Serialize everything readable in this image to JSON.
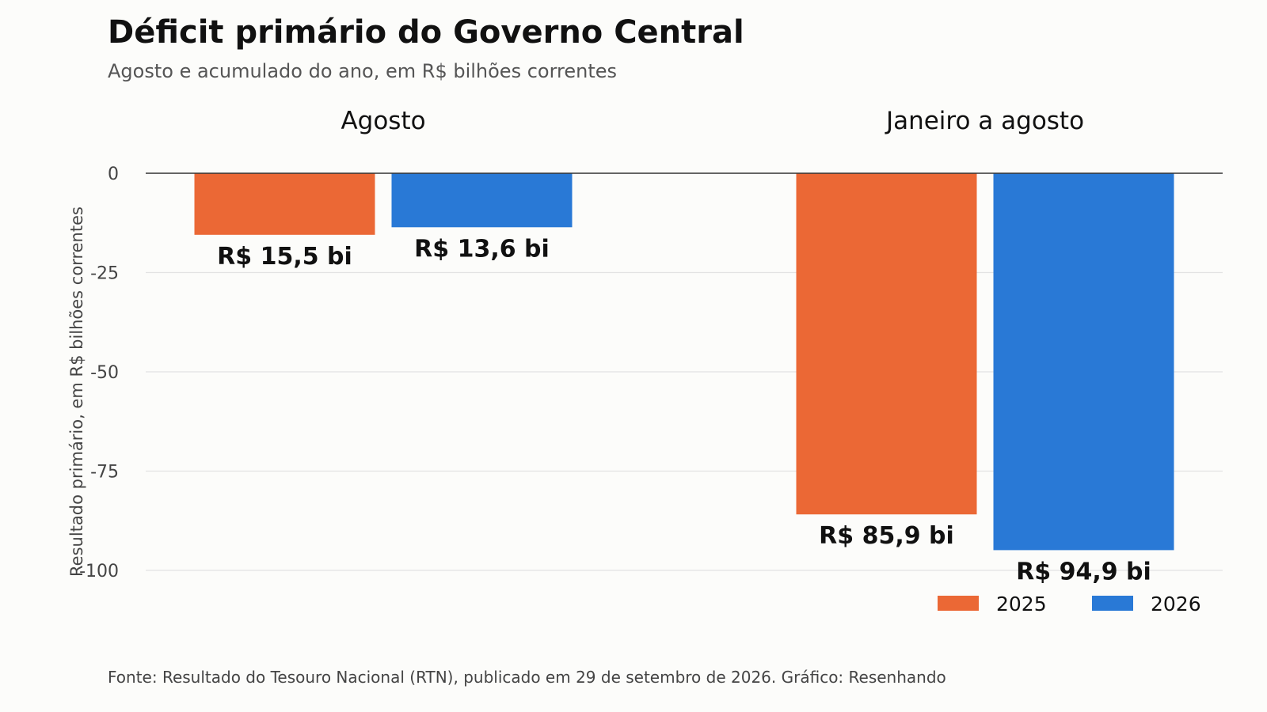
{
  "header": {
    "title": "Déficit primário do Governo Central",
    "subtitle": "Agosto e acumulado do ano, em R$ bilhões correntes"
  },
  "footer": {
    "source": "Fonte: Resultado do Tesouro Nacional (RTN), publicado em 29 de setembro de 2026.  Gráfico: Resenhando"
  },
  "chart_data": {
    "type": "bar",
    "title": "Déficit primário do Governo Central",
    "subtitle": "Agosto e acumulado do ano, em R$ bilhões correntes",
    "categories": [
      "Agosto",
      "Janeiro a agosto"
    ],
    "series": [
      {
        "name": "2025",
        "color": "#eb6835",
        "values": [
          -15.5,
          -85.9
        ],
        "labels": [
          "R$ 15,5 bi",
          "R$ 85,9 bi"
        ]
      },
      {
        "name": "2026",
        "color": "#2979d6",
        "values": [
          -13.6,
          -94.9
        ],
        "labels": [
          "R$ 13,6 bi",
          "R$ 94,9 bi"
        ]
      }
    ],
    "ylabel": "Resultado primário, em R$ bilhões correntes",
    "xlabel": "",
    "ylim": [
      -100,
      0
    ],
    "yticks": [
      0,
      -25,
      -50,
      -75,
      -100
    ],
    "ytick_labels": [
      "0",
      "-25",
      "-50",
      "-75",
      "-100"
    ],
    "grid": true,
    "legend_position": "bottom-right"
  }
}
